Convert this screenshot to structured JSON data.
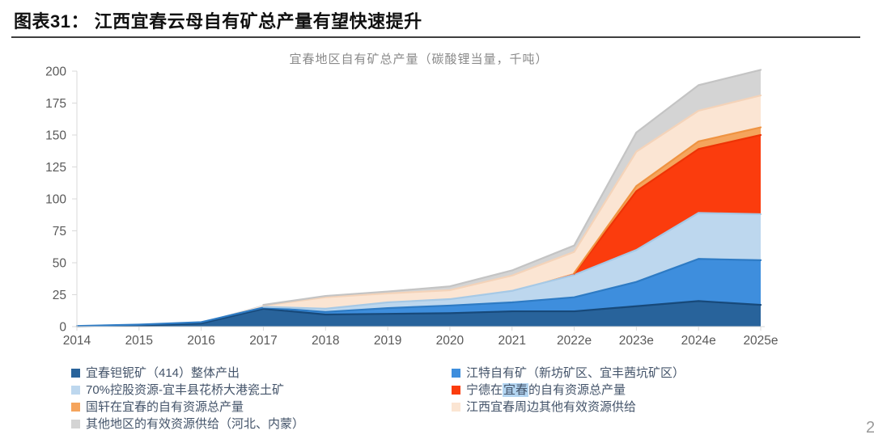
{
  "header": {
    "figure_label": "图表31：",
    "figure_title": "江西宜春云母自有矿总产量有望快速提升"
  },
  "page": {
    "page_number": "2"
  },
  "chart_data": {
    "type": "area",
    "stacked": true,
    "title": "宜春地区自有矿总产量（碳酸锂当量，千吨）",
    "categories": [
      "2014",
      "2015",
      "2016",
      "2017",
      "2018",
      "2019",
      "2020",
      "2021",
      "2022e",
      "2023e",
      "2024e",
      "2025e"
    ],
    "y_ticks": [
      0,
      25,
      50,
      75,
      100,
      125,
      150,
      175,
      200
    ],
    "ylim": [
      0,
      200
    ],
    "grid": false,
    "legend_position": "bottom",
    "axis_color": "#d9d9d9",
    "tick_label_color": "#595959",
    "series": [
      {
        "name": "宜春钽铌矿（414）整体产出",
        "color": "#28639B",
        "line_color": "#17497A",
        "values": [
          0.2,
          0.8,
          2.5,
          14,
          9.5,
          10,
          10.5,
          12,
          12,
          16,
          20,
          17
        ]
      },
      {
        "name": "江特自有矿（新坊矿区、宜丰茜坑矿区）",
        "color": "#3E8EDD",
        "line_color": "#2E7BC4",
        "values": [
          0.3,
          0.8,
          1,
          1,
          2,
          4.5,
          6,
          7,
          11,
          19,
          33,
          35
        ]
      },
      {
        "name": "70%控股资源-宜丰县花桥大港瓷土矿",
        "color": "#BDD7EE",
        "line_color": "#A6C9E6",
        "values": [
          null,
          null,
          null,
          0.5,
          2.5,
          4.5,
          5,
          9,
          17.5,
          25,
          36,
          36
        ]
      },
      {
        "name": "宁德在宜春的自有资源总产量",
        "color": "#FB3C0D",
        "line_color": "#EE3305",
        "values": [
          null,
          null,
          null,
          null,
          null,
          null,
          null,
          null,
          1,
          46,
          50,
          62
        ]
      },
      {
        "name": "国轩在宜春的自有资源总产量",
        "color": "#F5A45C",
        "line_color": "#EF9341",
        "values": [
          null,
          null,
          null,
          null,
          null,
          null,
          null,
          null,
          0.5,
          4,
          6,
          6
        ]
      },
      {
        "name": "江西宜春周边其他有效资源供给",
        "color": "#FBE5D3",
        "line_color": "#F4D3B9",
        "values": [
          null,
          null,
          null,
          1,
          9,
          7,
          7,
          12,
          16.5,
          27,
          24,
          25
        ]
      },
      {
        "name": "其他地区的有效资源供给（河北、内蒙）",
        "color": "#D4D4D4",
        "line_color": "#C4C4C4",
        "values": [
          null,
          null,
          null,
          0.5,
          1,
          1.5,
          3,
          4,
          5,
          15,
          20,
          20
        ]
      }
    ]
  },
  "legend": {
    "left": [
      {
        "label": "宜春钽铌矿（414）整体产出",
        "color": "#28639B"
      },
      {
        "label": "70%控股资源-宜丰县花桥大港瓷土矿",
        "color": "#BDD7EE"
      },
      {
        "label": "国轩在宜春的自有资源总产量",
        "color": "#F5A45C"
      },
      {
        "label": "其他地区的有效资源供给（河北、内蒙）",
        "color": "#D4D4D4"
      }
    ],
    "right": [
      {
        "label": "江特自有矿（新坊矿区、宜丰茜坑矿区）",
        "color": "#3E8EDD"
      },
      {
        "label_prefix": "宁德在",
        "label_highlight": "宜春",
        "label_suffix": "的自有资源总产量",
        "color": "#FB3C0D",
        "highlight_color": "#B3D5F1"
      },
      {
        "label": "江西宜春周边其他有效资源供给",
        "color": "#FBE5D3"
      }
    ]
  }
}
